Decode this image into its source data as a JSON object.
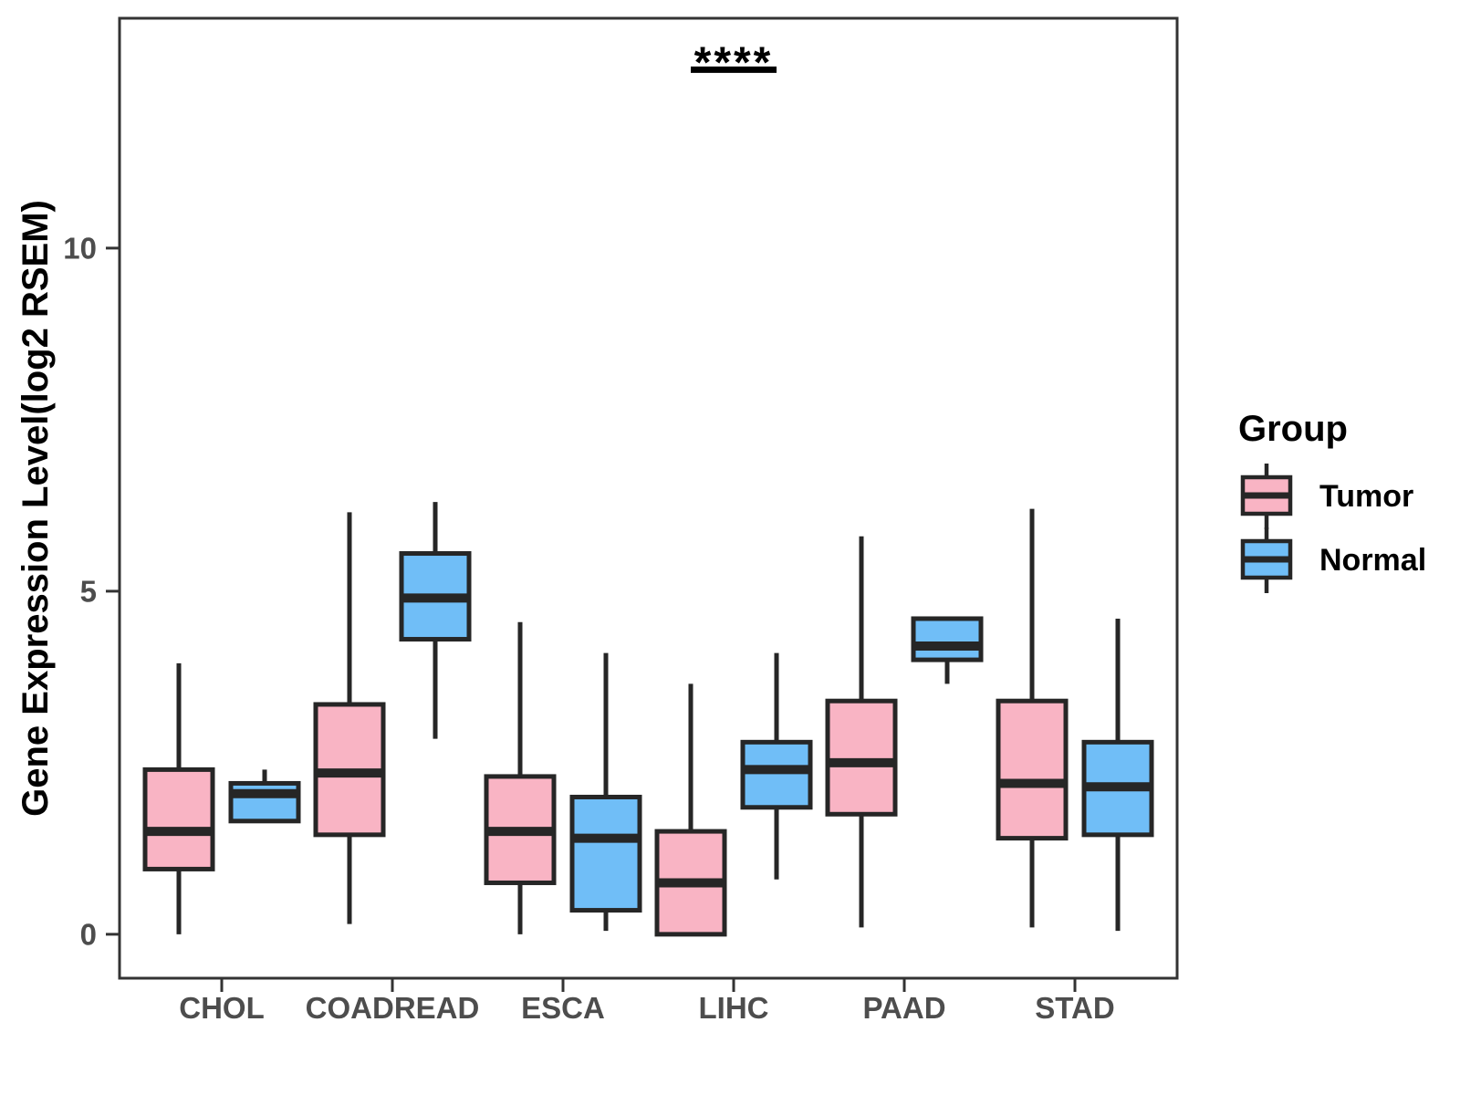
{
  "chart_data": {
    "type": "boxplot",
    "title": "",
    "xlabel": "",
    "ylabel": "Gene Expression Level(log2 RSEM)",
    "categories": [
      "CHOL",
      "COADREAD",
      "ESCA",
      "LIHC",
      "PAAD",
      "STAD"
    ],
    "groups": [
      "Tumor",
      "Normal"
    ],
    "y_ticks": [
      0,
      5,
      10
    ],
    "ylim": [
      -0.64,
      13.35
    ],
    "grid": false,
    "legend": {
      "title": "Group",
      "position": "right"
    },
    "annotation": {
      "label": "****",
      "category": "LIHC",
      "y": 12.6
    },
    "colors": {
      "tumor": "#F9B4C4",
      "normal": "#70BEF7",
      "box_stroke": "#262626",
      "axis": "#333333",
      "tick_text": "#4d4d4d"
    },
    "series": [
      {
        "name": "Tumor",
        "color": "#F9B4C4",
        "boxes": [
          {
            "category": "CHOL",
            "low": 0.0,
            "q1": 0.95,
            "median": 1.5,
            "q3": 2.4,
            "high": 3.95
          },
          {
            "category": "COADREAD",
            "low": 0.15,
            "q1": 1.45,
            "median": 2.35,
            "q3": 3.35,
            "high": 6.15
          },
          {
            "category": "ESCA",
            "low": 0.0,
            "q1": 0.75,
            "median": 1.5,
            "q3": 2.3,
            "high": 4.55
          },
          {
            "category": "LIHC",
            "low": 0.0,
            "q1": 0.0,
            "median": 0.75,
            "q3": 1.5,
            "high": 3.65
          },
          {
            "category": "PAAD",
            "low": 0.1,
            "q1": 1.75,
            "median": 2.5,
            "q3": 3.4,
            "high": 5.8
          },
          {
            "category": "STAD",
            "low": 0.1,
            "q1": 1.4,
            "median": 2.2,
            "q3": 3.4,
            "high": 6.2
          }
        ]
      },
      {
        "name": "Normal",
        "color": "#70BEF7",
        "boxes": [
          {
            "category": "CHOL",
            "low": 1.65,
            "q1": 1.65,
            "median": 2.05,
            "q3": 2.2,
            "high": 2.4
          },
          {
            "category": "COADREAD",
            "low": 2.85,
            "q1": 4.3,
            "median": 4.9,
            "q3": 5.55,
            "high": 6.3
          },
          {
            "category": "ESCA",
            "low": 0.05,
            "q1": 0.35,
            "median": 1.4,
            "q3": 2.0,
            "high": 4.1
          },
          {
            "category": "LIHC",
            "low": 0.8,
            "q1": 1.85,
            "median": 2.4,
            "q3": 2.8,
            "high": 4.1
          },
          {
            "category": "PAAD",
            "low": 3.65,
            "q1": 4.0,
            "median": 4.2,
            "q3": 4.6,
            "high": 4.6
          },
          {
            "category": "STAD",
            "low": 0.05,
            "q1": 1.45,
            "median": 2.15,
            "q3": 2.8,
            "high": 4.6
          }
        ]
      }
    ]
  }
}
